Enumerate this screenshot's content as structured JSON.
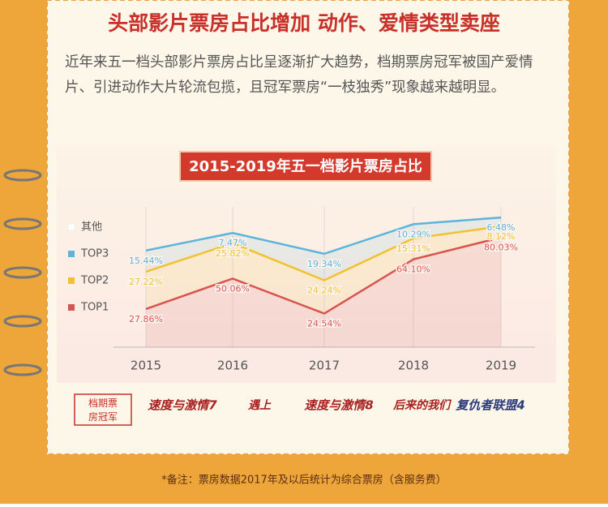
{
  "header": {
    "title": "头部影片票房占比增加 动作、爱情类型卖座"
  },
  "intro": "近年来五一档头部影片票房占比呈逐渐扩大趋势，档期票房冠军被国产爱情片、引进动作大片轮流包揽，且冠军票房“一枝独秀”现象越来越明显。",
  "chart_data": {
    "type": "stacked-area",
    "title": "2015-2019年五一档影片票房占比",
    "categories": [
      "2015",
      "2016",
      "2017",
      "2018",
      "2019"
    ],
    "series": [
      {
        "name": "TOP1",
        "color": "#d9534f",
        "values": [
          27.86,
          50.06,
          24.54,
          64.1,
          80.03
        ],
        "value_labels": [
          "27.86%",
          "50.06%",
          "24.54%",
          "64.10%",
          "80.03%"
        ]
      },
      {
        "name": "TOP2",
        "color": "#f2c12e",
        "values": [
          27.22,
          25.82,
          24.24,
          15.31,
          8.12
        ],
        "value_labels": [
          "27.22%",
          "25.82%",
          "24.24%",
          "15.31%",
          "8.12%"
        ]
      },
      {
        "name": "TOP3",
        "color": "#5ab4dc",
        "values": [
          15.44,
          7.47,
          19.34,
          10.29,
          6.48
        ],
        "value_labels": [
          "15.44%",
          "7.47%",
          "19.34%",
          "10.29%",
          "6.48%"
        ]
      },
      {
        "name": "其他",
        "color": "#ffffff"
      }
    ],
    "ylim": [
      0,
      100
    ]
  },
  "champions": {
    "label": "档期票房冠军",
    "movies": [
      "速度与激情7",
      "遇上",
      "速度与激情8",
      "后来的我们",
      "复仇者联盟4"
    ]
  },
  "footnote": "*备注：票房数据2017年及以后统计为综合票房（含服务费）"
}
